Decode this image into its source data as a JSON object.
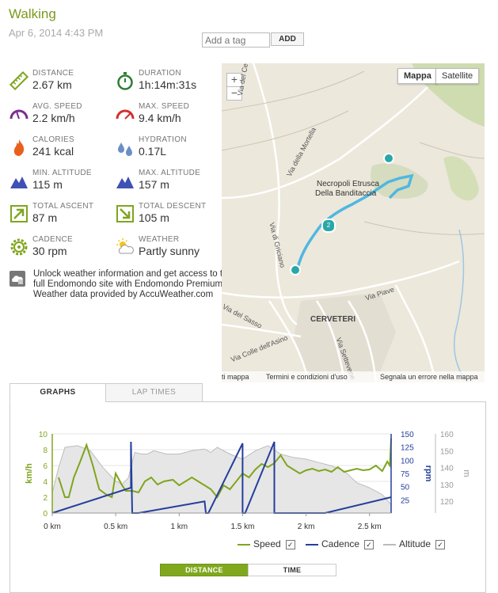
{
  "header": {
    "title": "Walking",
    "date": "Apr 6, 2014 4:43 PM",
    "tag_placeholder": "Add a tag",
    "add_button": "ADD"
  },
  "stats": [
    {
      "label": "DISTANCE",
      "value": "2.67 km",
      "icon": "ruler-icon"
    },
    {
      "label": "DURATION",
      "value": "1h:14m:31s",
      "icon": "stopwatch-icon"
    },
    {
      "label": "AVG. SPEED",
      "value": "2.2 km/h",
      "icon": "speedometer-icon"
    },
    {
      "label": "MAX. SPEED",
      "value": "9.4 km/h",
      "icon": "speedometer-max-icon"
    },
    {
      "label": "CALORIES",
      "value": "241 kcal",
      "icon": "flame-icon"
    },
    {
      "label": "HYDRATION",
      "value": "0.17L",
      "icon": "water-drops-icon"
    },
    {
      "label": "MIN. ALTITUDE",
      "value": "115 m",
      "icon": "mountain-icon"
    },
    {
      "label": "MAX. ALTITUDE",
      "value": "157 m",
      "icon": "mountain-peak-icon"
    },
    {
      "label": "TOTAL ASCENT",
      "value": "87 m",
      "icon": "arrow-up-right-icon"
    },
    {
      "label": "TOTAL DESCENT",
      "value": "105 m",
      "icon": "arrow-down-right-icon"
    },
    {
      "label": "CADENCE",
      "value": "30 rpm",
      "icon": "cog-icon"
    },
    {
      "label": "WEATHER",
      "value": "Partly sunny",
      "icon": "partly-sunny-icon"
    }
  ],
  "premium": {
    "text": "Unlock weather information and get access to the full Endomondo site with Endomondo Premium.",
    "provider": "Weather data provided by AccuWeather.com"
  },
  "map": {
    "type_buttons": [
      "Mappa",
      "Satellite"
    ],
    "zoom_in": "+",
    "zoom_out": "−",
    "poi_line1": "Necropoli Etrusca",
    "poi_line2": "Della Banditaccia",
    "town": "CERVETERI",
    "streets": [
      "Via del Cerbezzolo",
      "Via della Mortella",
      "Via di Griciano",
      "Via Piave",
      "Via del Sasso",
      "Via Colle dell'Asino",
      "Via Settevene"
    ],
    "marker_mid": "2",
    "footer_items": [
      "ti mappa",
      "Termini e condizioni d'uso",
      "Segnala un errore nella mappa"
    ],
    "route_color": "#4fb7e0"
  },
  "tabs": {
    "graphs": "GRAPHS",
    "lap_times": "LAP TIMES"
  },
  "chart_data": {
    "type": "line",
    "xlabel": "",
    "x_ticks": [
      "0 km",
      "0.5 km",
      "1 km",
      "1.5 km",
      "2 km",
      "2.5 km"
    ],
    "x_tick_values": [
      0,
      0.5,
      1,
      1.5,
      2,
      2.5
    ],
    "xlim": [
      0,
      2.67
    ],
    "axes": {
      "speed": {
        "label": "km/h",
        "ylim": [
          0,
          10
        ],
        "ticks": [
          "0",
          "2",
          "4",
          "6",
          "8",
          "10"
        ],
        "color": "#7fa51e"
      },
      "cadence": {
        "label": "rpm",
        "ylim": [
          0,
          150
        ],
        "ticks": [
          "25",
          "50",
          "75",
          "100",
          "125",
          "150"
        ],
        "color": "#243f9b"
      },
      "altitude": {
        "label": "m",
        "ylim": [
          113,
          160
        ],
        "ticks": [
          "120",
          "130",
          "140",
          "150",
          "160"
        ],
        "color": "#aaaaaa"
      }
    },
    "series": [
      {
        "name": "Speed",
        "axis": "speed",
        "x": [
          0.05,
          0.07,
          0.1,
          0.13,
          0.17,
          0.22,
          0.27,
          0.32,
          0.37,
          0.42,
          0.47,
          0.5,
          0.55,
          0.58,
          0.63,
          0.68,
          0.73,
          0.78,
          0.83,
          0.88,
          0.95,
          1.0,
          1.05,
          1.1,
          1.15,
          1.2,
          1.25,
          1.3,
          1.35,
          1.4,
          1.45,
          1.5,
          1.55,
          1.6,
          1.65,
          1.7,
          1.75,
          1.8,
          1.85,
          1.9,
          1.95,
          2.0,
          2.05,
          2.1,
          2.15,
          2.2,
          2.25,
          2.3,
          2.35,
          2.4,
          2.45,
          2.5,
          2.55,
          2.6,
          2.64,
          2.66,
          2.67
        ],
        "values": [
          4.5,
          3.5,
          2.0,
          2.0,
          4.5,
          6.5,
          8.6,
          6.0,
          3.0,
          2.4,
          2.0,
          5.0,
          3.5,
          2.8,
          2.8,
          2.6,
          4.0,
          4.5,
          3.6,
          4.0,
          4.2,
          3.5,
          4.0,
          4.5,
          4.0,
          3.5,
          3.0,
          2.0,
          3.5,
          3.0,
          4.0,
          5.0,
          4.5,
          5.5,
          6.2,
          5.8,
          6.3,
          7.3,
          6.0,
          5.5,
          5.0,
          5.4,
          5.6,
          5.3,
          5.5,
          5.2,
          5.8,
          5.2,
          5.4,
          5.6,
          5.4,
          5.5,
          6.0,
          5.3,
          6.5,
          6.0,
          9.4
        ]
      },
      {
        "name": "Cadence",
        "axis": "cadence",
        "x": [
          0.0,
          0.62,
          0.62,
          0.63,
          0.68,
          1.2,
          1.21,
          1.23,
          1.5,
          1.5,
          1.52,
          1.75,
          1.75,
          1.77,
          2.1,
          2.15,
          2.67
        ],
        "values": [
          0,
          48,
          135,
          0,
          0,
          22,
          0,
          0,
          132,
          0,
          0,
          135,
          0,
          0,
          0,
          0,
          30
        ]
      },
      {
        "name": "Altitude",
        "axis": "altitude",
        "x": [
          0.0,
          0.05,
          0.1,
          0.2,
          0.3,
          0.4,
          0.5,
          0.55,
          0.6,
          0.65,
          0.7,
          0.75,
          0.8,
          0.9,
          1.0,
          1.1,
          1.2,
          1.25,
          1.3,
          1.4,
          1.5,
          1.6,
          1.7,
          1.8,
          1.9,
          2.0,
          2.1,
          2.2,
          2.3,
          2.4,
          2.5,
          2.6,
          2.67
        ],
        "values": [
          125,
          140,
          152,
          153,
          150,
          140,
          132,
          130,
          134,
          149,
          148,
          148,
          150,
          148,
          148,
          150,
          151,
          149,
          152,
          148,
          145,
          150,
          153,
          148,
          146,
          145,
          143,
          141,
          138,
          131,
          128,
          124,
          118
        ]
      }
    ],
    "grid": true,
    "legend": "bottom-right"
  },
  "legend": {
    "speed": "Speed",
    "cadence": "Cadence",
    "altitude": "Altitude"
  },
  "toggle": {
    "distance": "DISTANCE",
    "time": "TIME"
  }
}
